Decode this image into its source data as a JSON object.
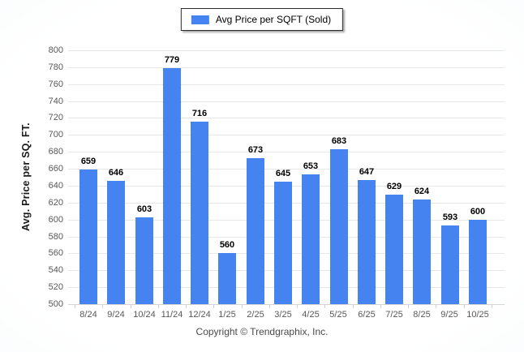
{
  "chart_data": {
    "type": "bar",
    "title": "",
    "legend": {
      "label": "Avg Price per SQFT (Sold)",
      "position": "top-center",
      "swatch_color": "#4583F1"
    },
    "categories": [
      "8/24",
      "9/24",
      "10/24",
      "11/24",
      "12/24",
      "1/25",
      "2/25",
      "3/25",
      "4/25",
      "5/25",
      "6/25",
      "7/25",
      "8/25",
      "9/25",
      "10/25"
    ],
    "values": [
      659,
      646,
      603,
      779,
      716,
      560,
      673,
      645,
      653,
      683,
      647,
      629,
      624,
      593,
      600
    ],
    "xlabel": "",
    "ylabel": "Avg. Price per SQ. FT.",
    "ylim": [
      500,
      800
    ],
    "ytick_step": 20,
    "grid": "horizontal",
    "bar_color": "#4583F1",
    "value_labels": true
  },
  "footer": {
    "copyright": "Copyright © Trendgraphix, Inc."
  },
  "colors": {
    "background": "#ffffff",
    "gridline": "#e7e7e7",
    "baseline": "#d4d4d4",
    "tick_text": "#585858",
    "value_text": "#000000",
    "bar": "#4583F1"
  }
}
